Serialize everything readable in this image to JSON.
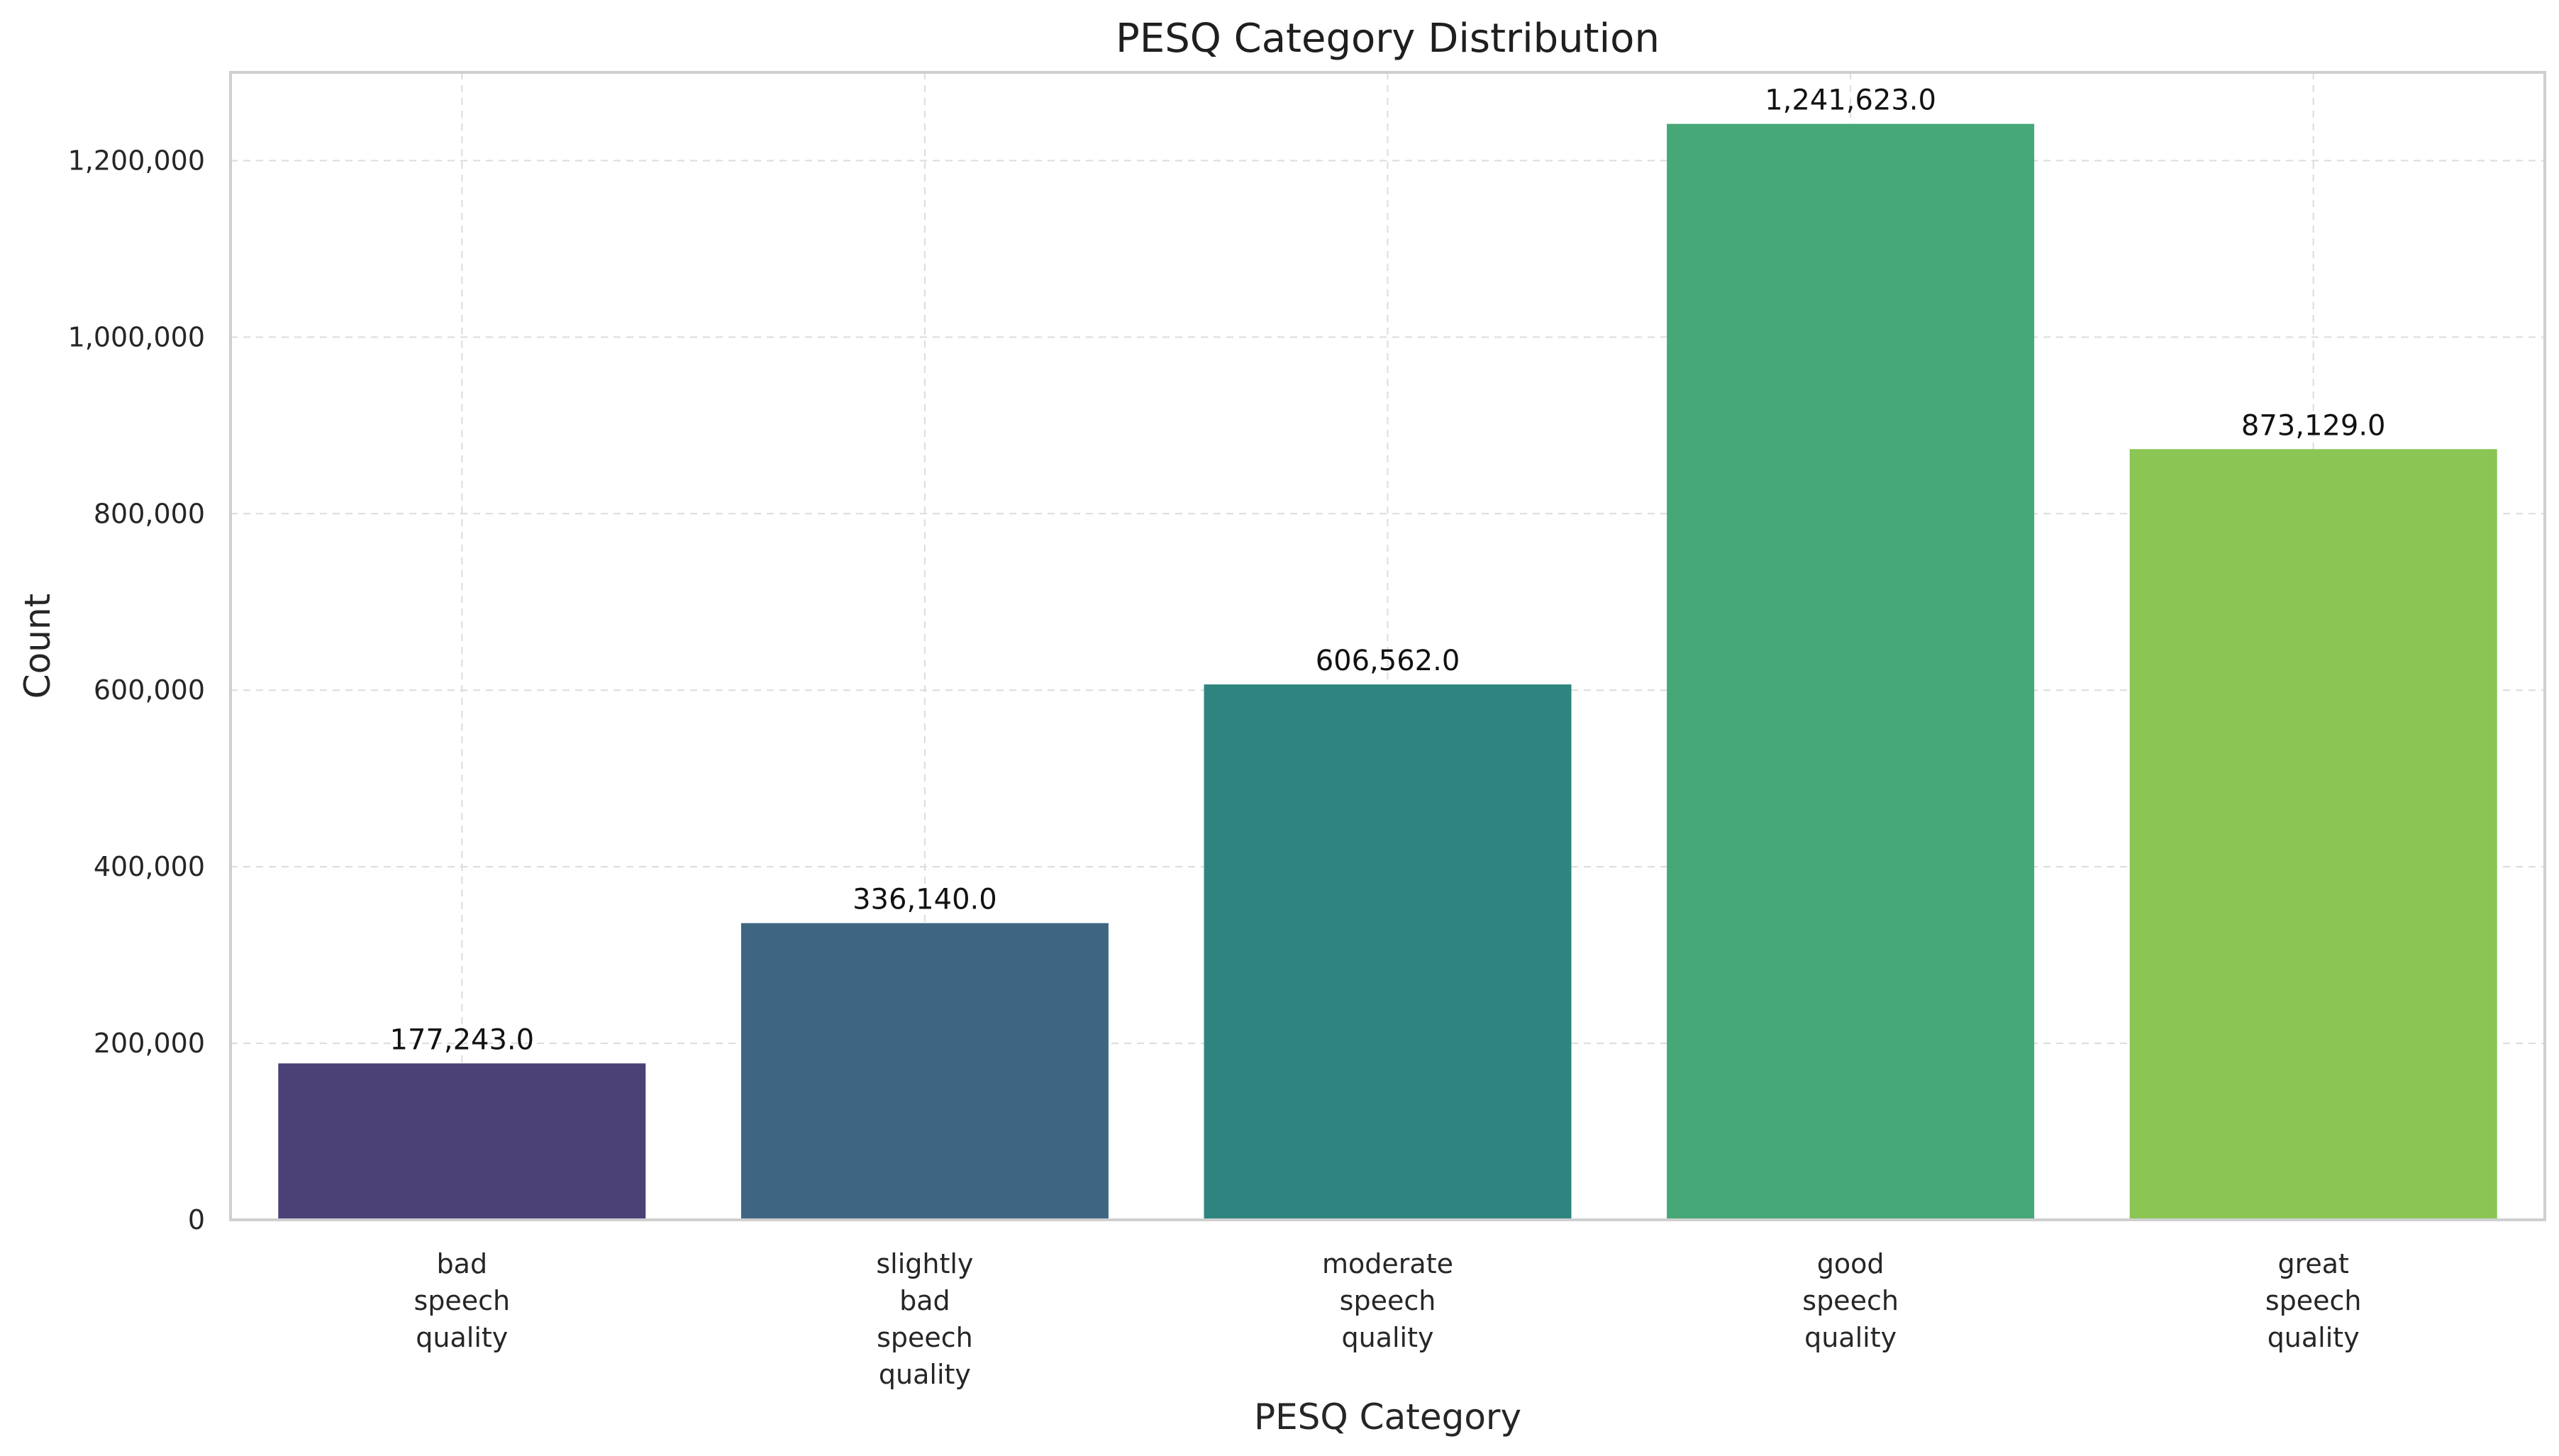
{
  "chart_data": {
    "type": "bar",
    "title": "PESQ Category Distribution",
    "xlabel": "PESQ Category",
    "ylabel": "Count",
    "categories": [
      [
        "bad",
        "speech",
        "quality"
      ],
      [
        "slightly",
        "bad",
        "speech",
        "quality"
      ],
      [
        "moderate",
        "speech",
        "quality"
      ],
      [
        "good",
        "speech",
        "quality"
      ],
      [
        "great",
        "speech",
        "quality"
      ]
    ],
    "values": [
      177243,
      336140,
      606562,
      1241623,
      873129
    ],
    "data_labels": [
      "177,243.0",
      "336,140.0",
      "606,562.0",
      "1,241,623.0",
      "873,129.0"
    ],
    "colors": [
      "#4b4177",
      "#3e6682",
      "#2e857f",
      "#46a877",
      "#8bc554"
    ],
    "ylim": [
      0,
      1300000
    ],
    "yticks": [
      0,
      200000,
      400000,
      600000,
      800000,
      1000000,
      1200000
    ],
    "ytick_labels": [
      "0",
      "200,000",
      "400,000",
      "600,000",
      "800,000",
      "1,000,000",
      "1,200,000"
    ],
    "grid": true
  }
}
